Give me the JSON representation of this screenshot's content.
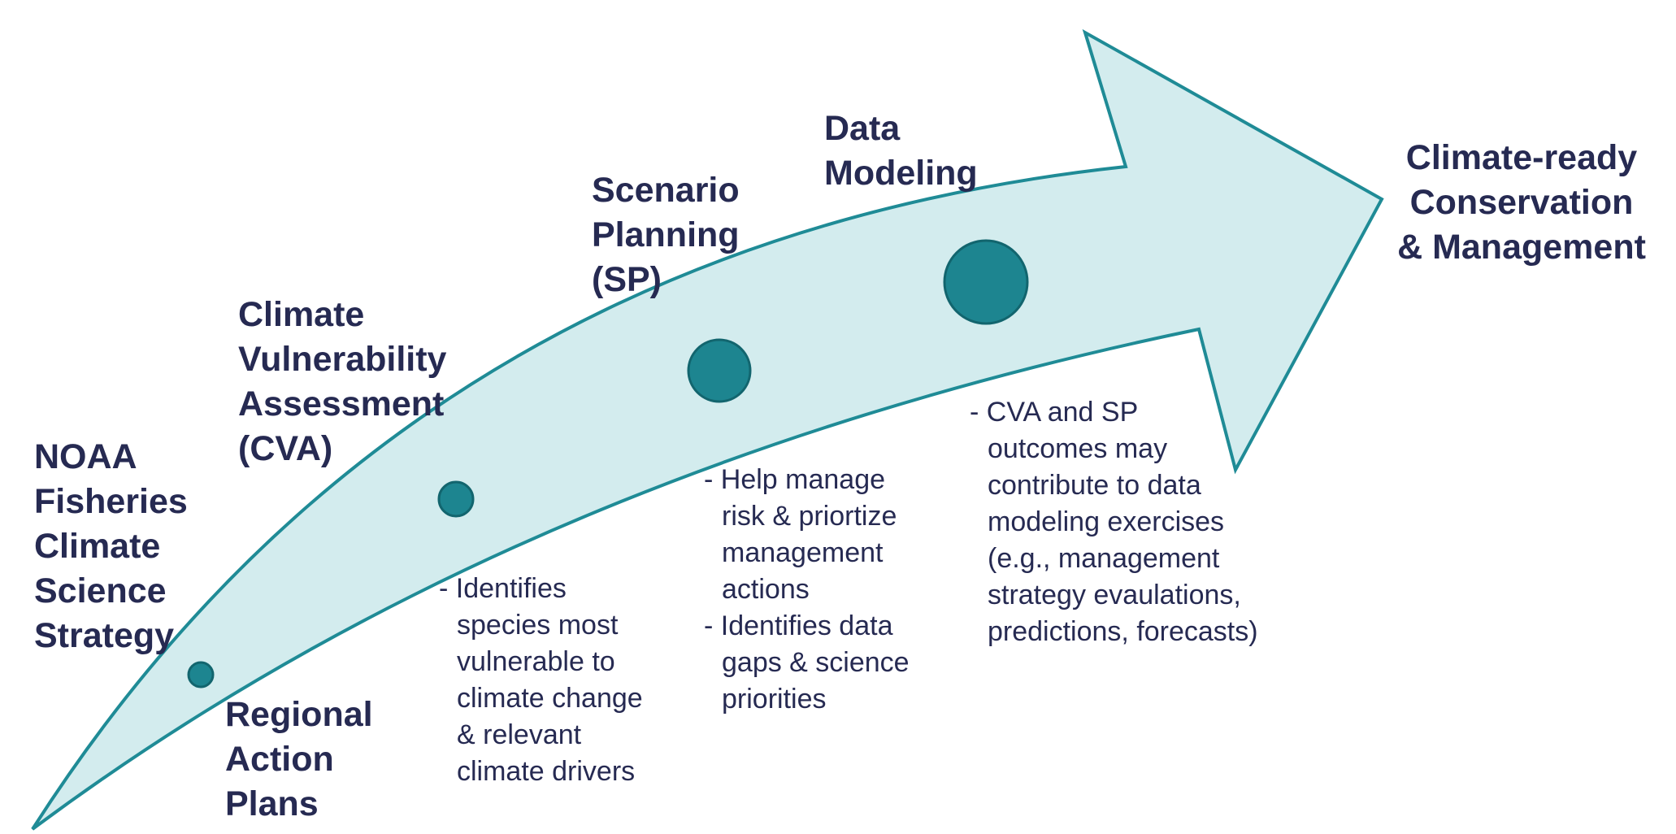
{
  "colors": {
    "arrow_fill": "#d3ecee",
    "arrow_stroke": "#1f8b96",
    "node_fill": "#1d8590",
    "node_stroke": "#12656e",
    "text": "#262a52"
  },
  "stages": {
    "strategy": {
      "lines": [
        "NOAA",
        "Fisheries",
        "Climate",
        "Science",
        "Strategy"
      ]
    },
    "regional": {
      "lines": [
        "Regional",
        "Action",
        "Plans"
      ]
    },
    "cva": {
      "lines": [
        "Climate",
        "Vulnerability",
        "Assessment",
        "(CVA)"
      ],
      "notes": [
        "- Identifies",
        "species most",
        "vulnerable to",
        "climate change",
        "& relevant",
        "climate drivers"
      ]
    },
    "sp": {
      "lines": [
        "Scenario",
        "Planning",
        "(SP)"
      ],
      "notes": [
        "- Help manage",
        "risk & priortize",
        "management",
        "actions",
        "- Identifies data",
        "gaps & science",
        "priorities"
      ]
    },
    "dm": {
      "lines": [
        "Data",
        "Modeling"
      ],
      "notes": [
        "- CVA and SP",
        "outcomes may",
        "contribute to data",
        "modeling exercises",
        "(e.g., management",
        "strategy evaulations,",
        "predictions, forecasts)"
      ]
    },
    "goal": {
      "lines": [
        "Climate-ready",
        "Conservation",
        "& Management"
      ]
    }
  }
}
